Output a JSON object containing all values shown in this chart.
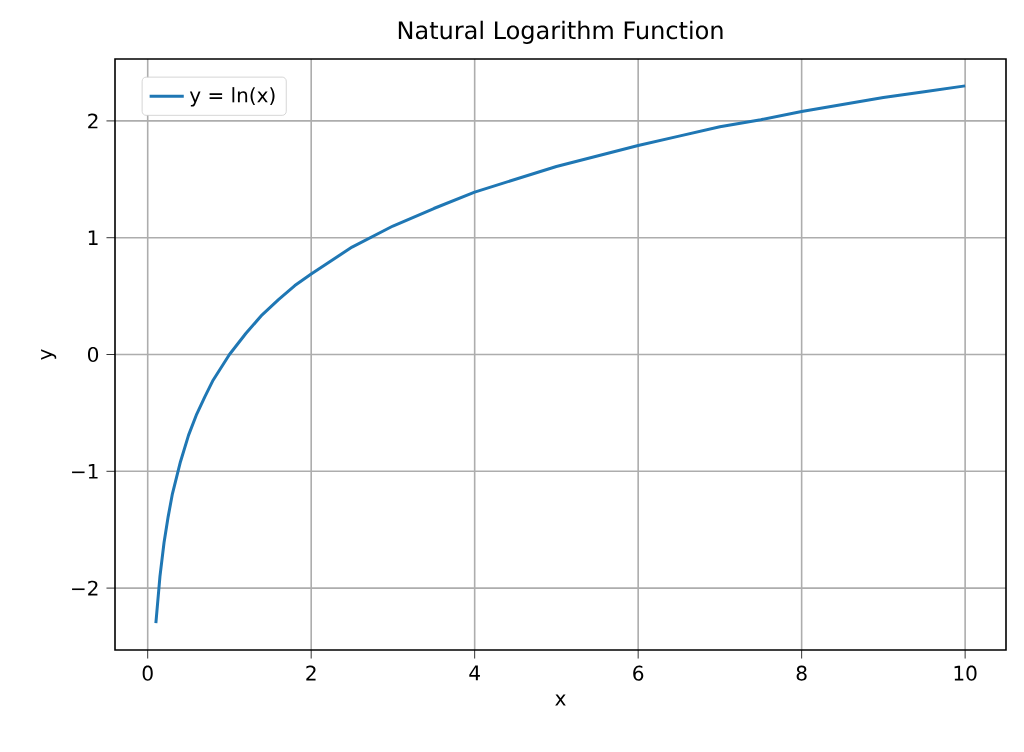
{
  "chart_data": {
    "type": "line",
    "title": "Natural Logarithm Function",
    "xlabel": "x",
    "ylabel": "y",
    "x": [
      0.1,
      0.15,
      0.2,
      0.25,
      0.3,
      0.4,
      0.5,
      0.6,
      0.7,
      0.8,
      1,
      1.2,
      1.4,
      1.6,
      1.8,
      2,
      2.5,
      3,
      3.5,
      4,
      4.5,
      5,
      5.5,
      6,
      6.5,
      7,
      7.5,
      8,
      8.5,
      9,
      9.5,
      10
    ],
    "series": [
      {
        "name": "y = ln(x)",
        "color": "#1f77b4",
        "values": [
          -2.3,
          -1.9,
          -1.61,
          -1.39,
          -1.2,
          -0.92,
          -0.69,
          -0.51,
          -0.36,
          -0.22,
          0,
          0.18,
          0.34,
          0.47,
          0.59,
          0.69,
          0.92,
          1.1,
          1.25,
          1.39,
          1.5,
          1.61,
          1.7,
          1.79,
          1.87,
          1.95,
          2.01,
          2.08,
          2.14,
          2.2,
          2.25,
          2.3
        ]
      }
    ],
    "xlim": [
      -0.4,
      10.5
    ],
    "ylim": [
      -2.53,
      2.53
    ],
    "xticks": [
      0,
      2,
      4,
      6,
      8,
      10
    ],
    "yticks": [
      {
        "value": -2,
        "label": "−2"
      },
      {
        "value": -1,
        "label": "−1"
      },
      0,
      1,
      2
    ],
    "grid": true,
    "legend": "top left",
    "marker": "none",
    "line_style": "solid"
  }
}
